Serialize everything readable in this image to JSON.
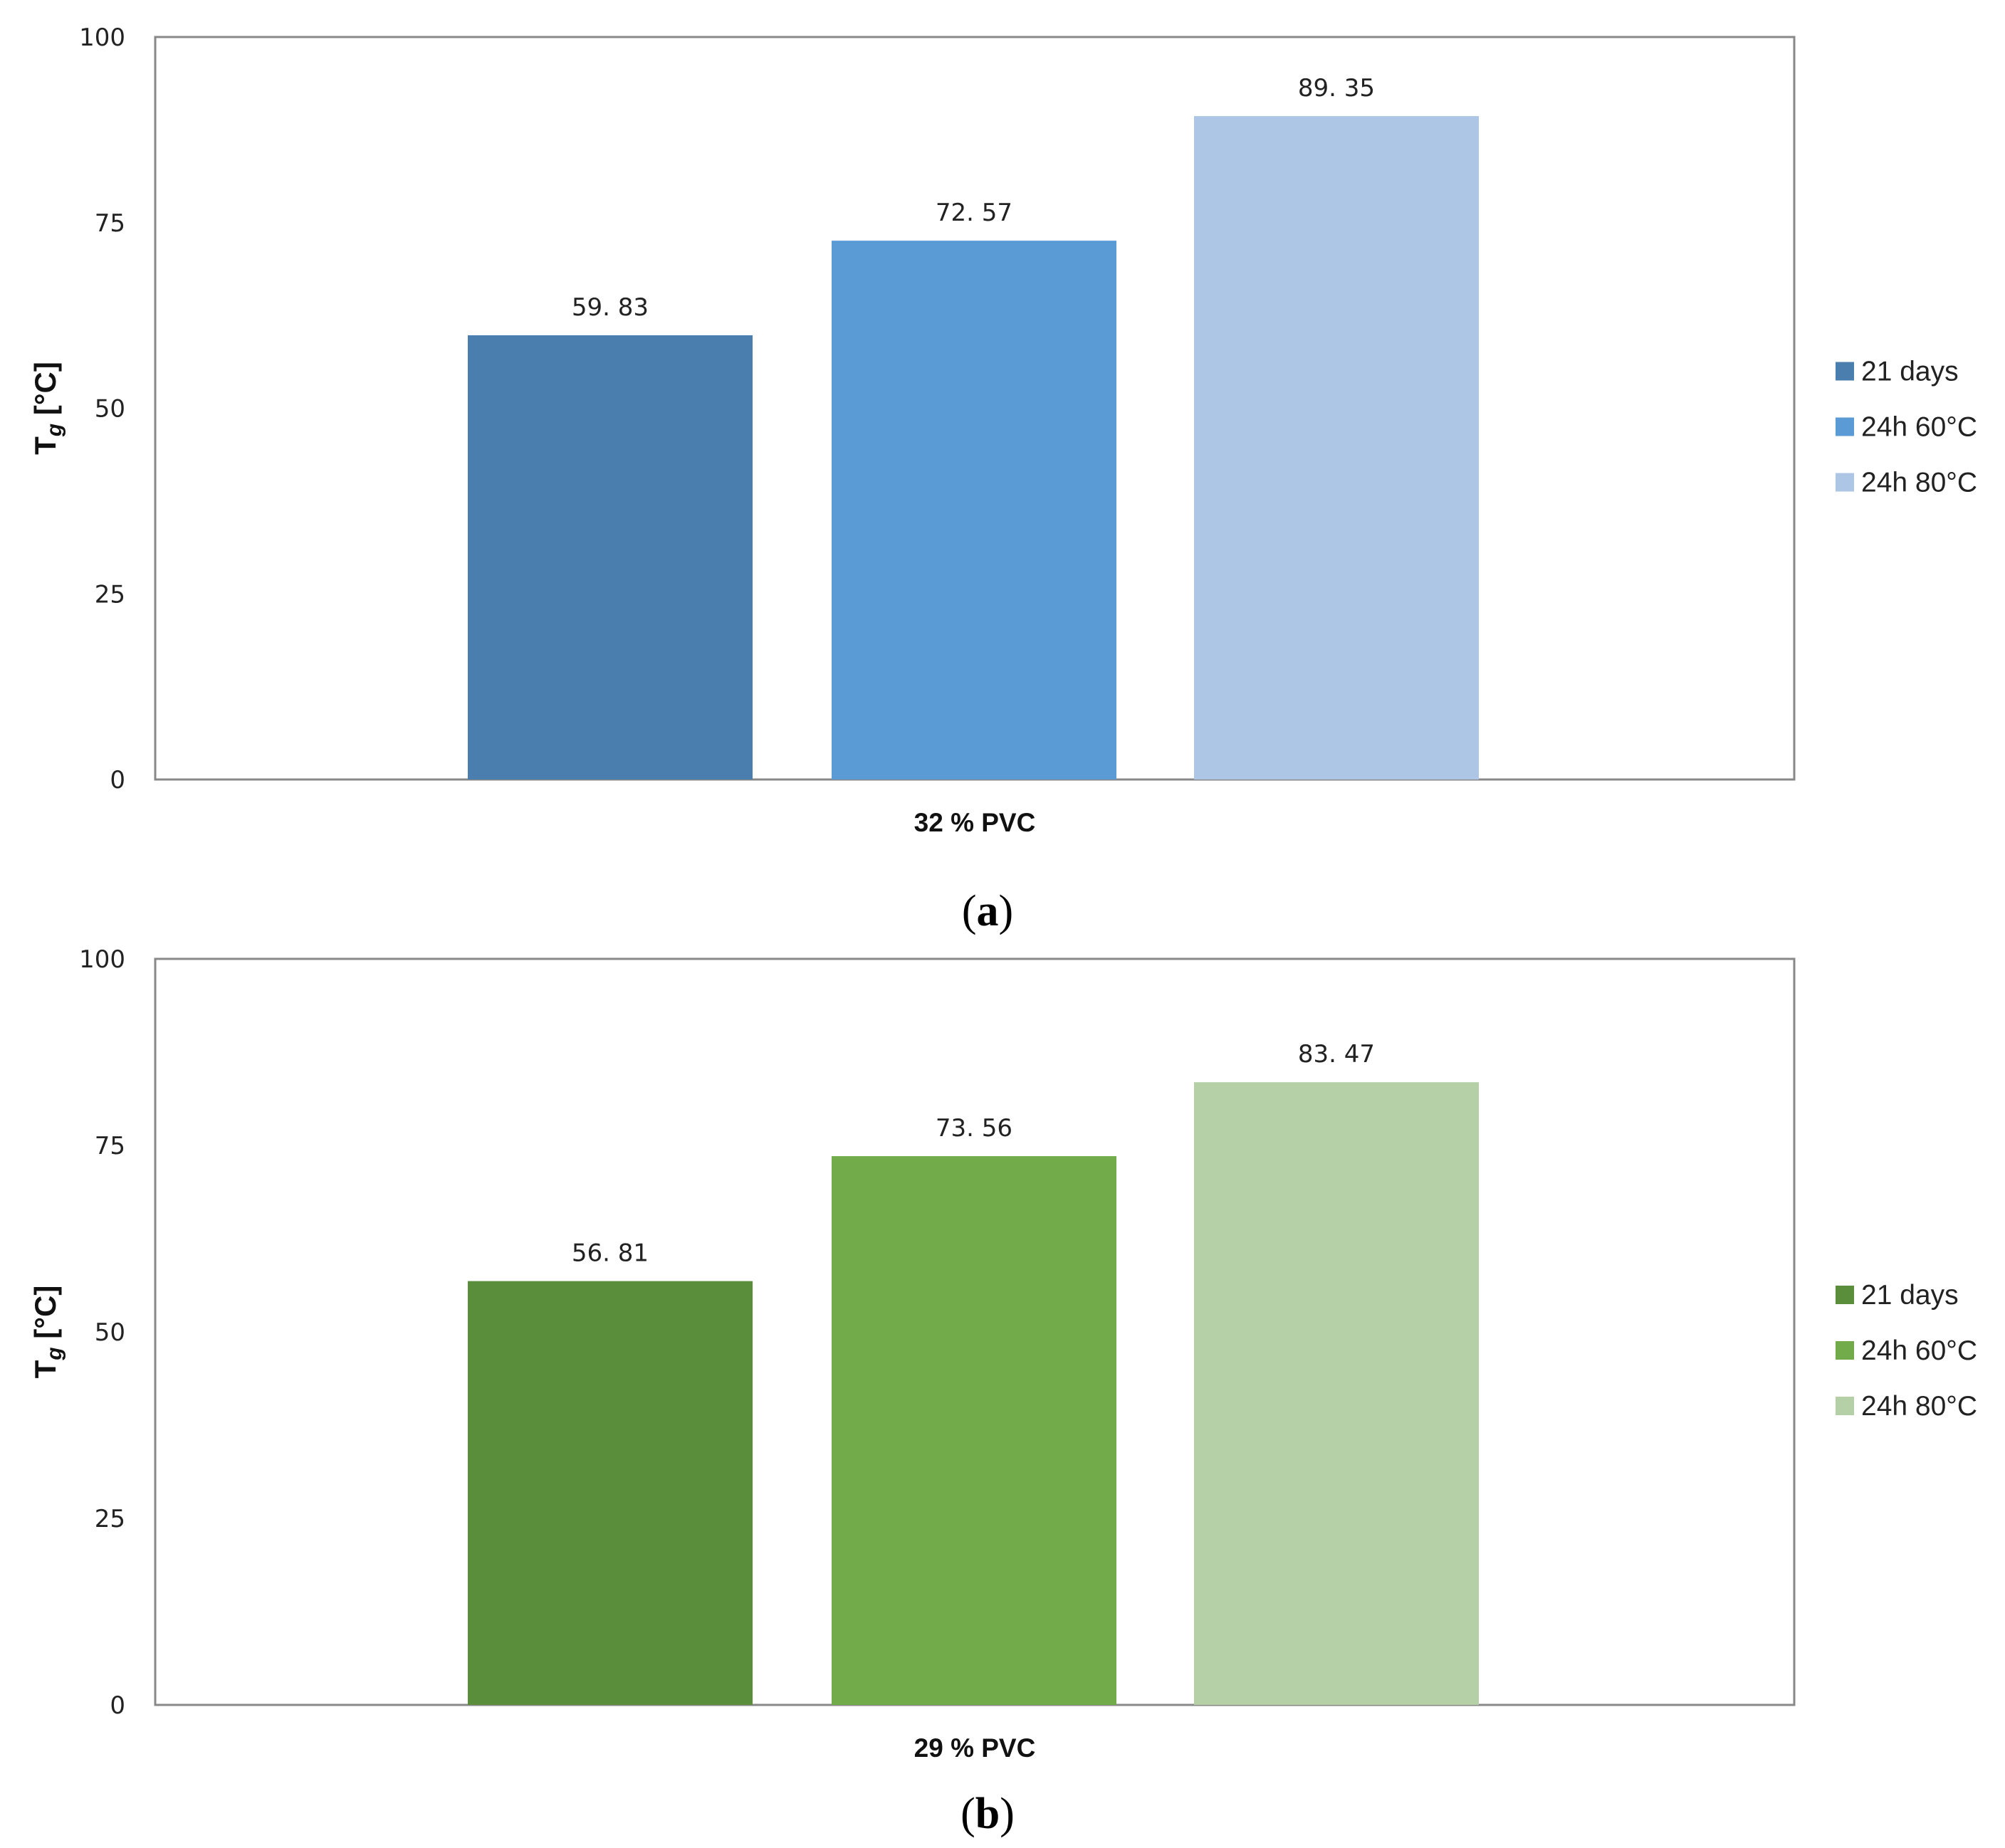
{
  "chart_data": [
    {
      "type": "bar",
      "panel": "a",
      "categories": [
        "32 % PVC"
      ],
      "series": [
        {
          "name": "21 days",
          "values": [
            59.83
          ],
          "label": "59. 83",
          "color": "#4a7eae"
        },
        {
          "name": "24h 60°C",
          "values": [
            72.57
          ],
          "label": "72. 57",
          "color": "#5b9bd5"
        },
        {
          "name": "24h 80°C",
          "values": [
            89.35
          ],
          "label": "89. 35",
          "color": "#adc6e5"
        }
      ],
      "ylabel_main": "T",
      "ylabel_sub": "g",
      "ylabel_unit": " [°C]",
      "xlabel": "32 % PVC",
      "ylim": [
        0,
        100
      ],
      "yticks": [
        0,
        25,
        50,
        75,
        100
      ],
      "ytick_labels": [
        "0",
        "25",
        "50",
        "75",
        "100"
      ],
      "legend_position": "right",
      "grid": false,
      "caption_open": "(",
      "caption_letter": "a",
      "caption_close": ")"
    },
    {
      "type": "bar",
      "panel": "b",
      "categories": [
        "29 % PVC"
      ],
      "series": [
        {
          "name": "21 days",
          "values": [
            56.81
          ],
          "label": "56. 81",
          "color": "#5b8e3a"
        },
        {
          "name": "24h 60°C",
          "values": [
            73.56
          ],
          "label": "73. 56",
          "color": "#72ac4a"
        },
        {
          "name": "24h 80°C",
          "values": [
            83.47
          ],
          "label": "83. 47",
          "color": "#b5cfa7"
        }
      ],
      "ylabel_main": "T",
      "ylabel_sub": "g",
      "ylabel_unit": " [°C]",
      "xlabel": "29 % PVC",
      "ylim": [
        0,
        100
      ],
      "yticks": [
        0,
        25,
        50,
        75,
        100
      ],
      "ytick_labels": [
        "0",
        "25",
        "50",
        "75",
        "100"
      ],
      "legend_position": "right",
      "grid": false,
      "caption_open": "(",
      "caption_letter": "b",
      "caption_close": ")"
    }
  ]
}
